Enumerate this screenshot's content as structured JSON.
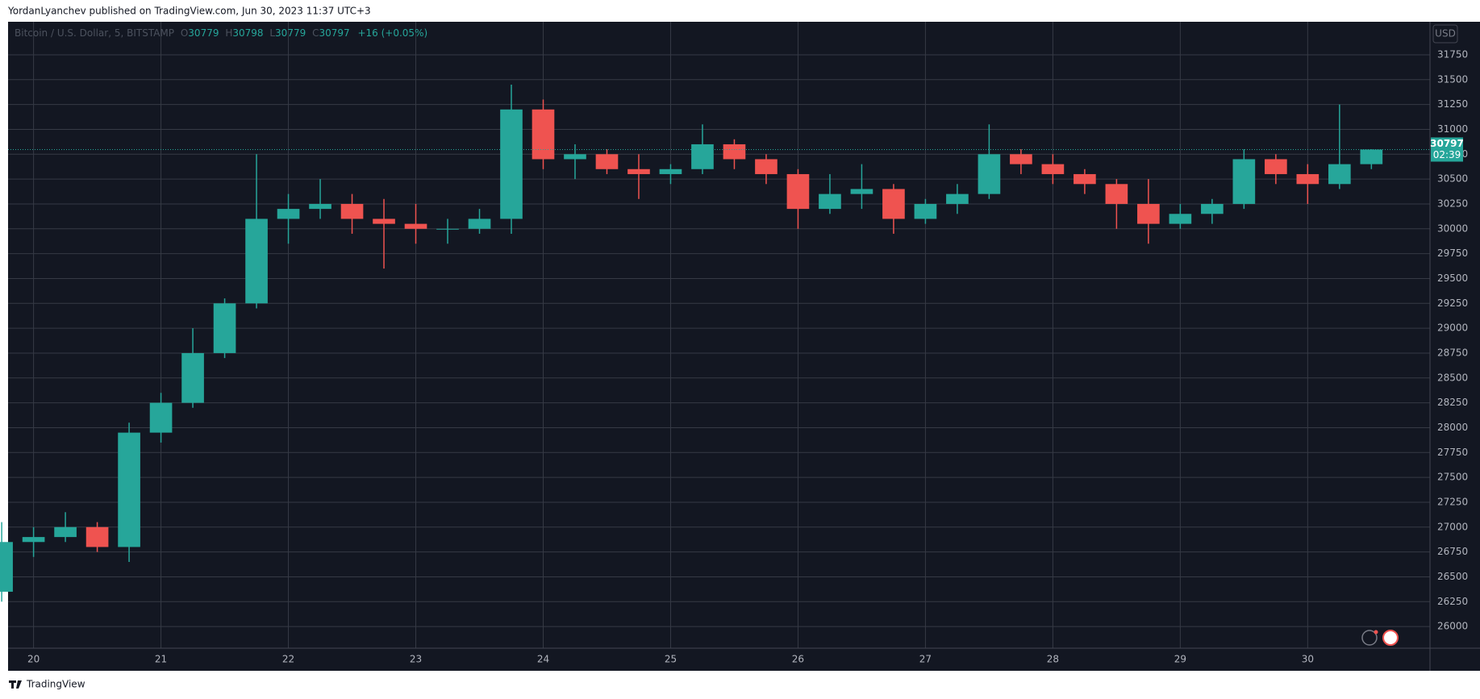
{
  "header": {
    "title": "YordanLyanchev published on TradingView.com, Jun 30, 2023 11:37 UTC+3"
  },
  "footer": {
    "brand": "TradingView"
  },
  "chart_data": {
    "type": "candlestick",
    "legend": {
      "symbol": "Bitcoin / U.S. Dollar, 5, BITSTAMP",
      "ohlc": [
        {
          "label": "O",
          "value": 30779
        },
        {
          "label": "H",
          "value": 30798
        },
        {
          "label": "L",
          "value": 30779
        },
        {
          "label": "C",
          "value": 30797
        }
      ],
      "change": "+16 (+0.05%)"
    },
    "currency": "USD",
    "last_price": 30797,
    "countdown": "02:39",
    "up_color": "#26a69a",
    "down_color": "#ef5350",
    "grid": true,
    "x": [
      19.75,
      20,
      20.25,
      20.5,
      20.75,
      21,
      21.25,
      21.5,
      21.75,
      22,
      22.25,
      22.5,
      22.75,
      23,
      23.25,
      23.5,
      23.75,
      24,
      24.25,
      24.5,
      24.75,
      25,
      25.25,
      25.5,
      25.75,
      26,
      26.25,
      26.5,
      26.75,
      27,
      27.25,
      27.5,
      27.75,
      28,
      28.25,
      28.5,
      28.75,
      29,
      29.25,
      29.5,
      29.75,
      30,
      30.25,
      30.5
    ],
    "open": [
      26350,
      26850,
      26900,
      27000,
      26800,
      27950,
      28250,
      28750,
      29250,
      30100,
      30200,
      30250,
      30100,
      30050,
      30000,
      30000,
      30100,
      31200,
      30700,
      30750,
      30600,
      30550,
      30600,
      30850,
      30700,
      30550,
      30200,
      30350,
      30400,
      30100,
      30250,
      30350,
      30750,
      30650,
      30550,
      30450,
      30250,
      30050,
      30150,
      30250,
      30700,
      30550,
      30450,
      30650
    ],
    "high": [
      27050,
      27000,
      27150,
      27050,
      28050,
      28350,
      29000,
      29300,
      30750,
      30350,
      30500,
      30350,
      30300,
      30250,
      30100,
      30200,
      31450,
      31300,
      30850,
      30800,
      30750,
      30650,
      31050,
      30900,
      30750,
      30600,
      30550,
      30650,
      30450,
      30300,
      30450,
      31050,
      30800,
      30750,
      30600,
      30500,
      30500,
      30250,
      30300,
      30800,
      30750,
      30650,
      31250,
      30800
    ],
    "low": [
      26250,
      26700,
      26850,
      26750,
      26650,
      27850,
      28200,
      28700,
      29200,
      29850,
      30100,
      29950,
      29600,
      29850,
      29850,
      29950,
      29950,
      30600,
      30500,
      30550,
      30300,
      30450,
      30550,
      30600,
      30450,
      30000,
      30150,
      30200,
      29950,
      30050,
      30150,
      30300,
      30550,
      30450,
      30350,
      30000,
      29850,
      30000,
      30050,
      30200,
      30450,
      30250,
      30400,
      30600
    ],
    "close": [
      26850,
      26900,
      27000,
      26800,
      27950,
      28250,
      28750,
      29250,
      30100,
      30200,
      30250,
      30100,
      30050,
      30000,
      30000,
      30100,
      31200,
      30700,
      30750,
      30600,
      30550,
      30600,
      30850,
      30700,
      30550,
      30200,
      30350,
      30400,
      30100,
      30250,
      30350,
      30750,
      30650,
      30550,
      30450,
      30250,
      30050,
      30150,
      30250,
      30700,
      30550,
      30450,
      30650,
      30797
    ],
    "xlim": [
      19.8,
      30.96
    ],
    "xticks": [
      20,
      21,
      22,
      23,
      24,
      25,
      26,
      27,
      28,
      29,
      30
    ],
    "ylim": [
      25782,
      32082
    ],
    "yticks": [
      26000,
      26250,
      26500,
      26750,
      27000,
      27250,
      27500,
      27750,
      28000,
      28250,
      28500,
      28750,
      29000,
      29250,
      29500,
      29750,
      30000,
      30250,
      30500,
      30750,
      31000,
      31250,
      31500,
      31750
    ]
  }
}
